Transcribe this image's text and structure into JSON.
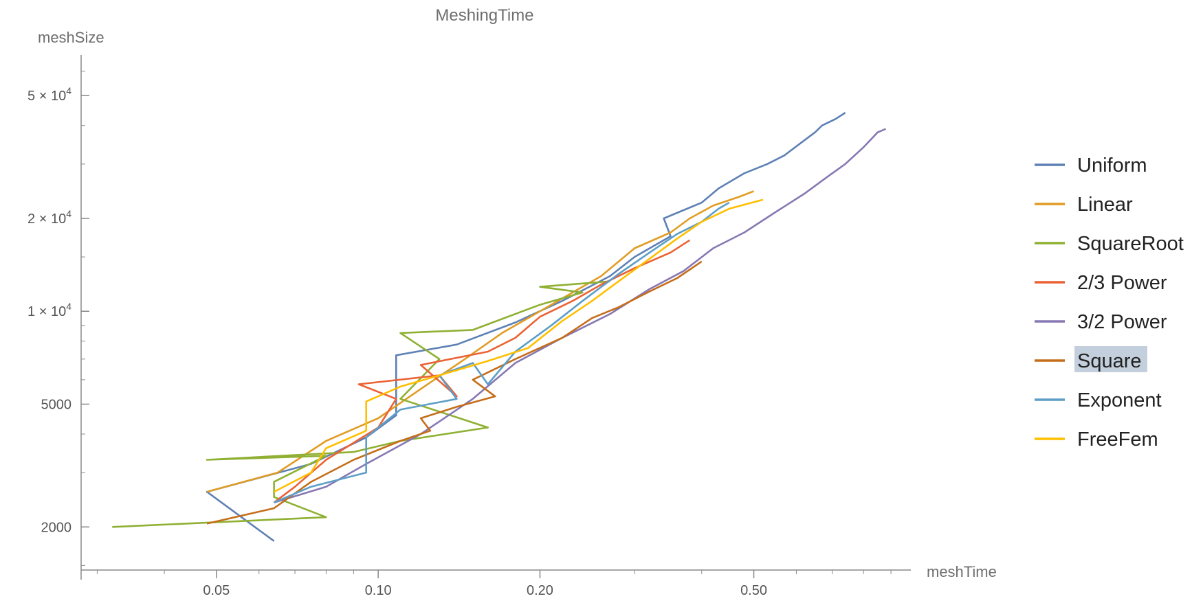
{
  "chart_data": {
    "type": "line",
    "title": "MeshingTime",
    "xlabel": "meshTime",
    "ylabel": "meshSize",
    "xscale": "log",
    "yscale": "log",
    "xlim": [
      0.028,
      0.98
    ],
    "ylim": [
      1450,
      66000
    ],
    "x_ticks": [
      {
        "value": 0.05,
        "label": "0.05"
      },
      {
        "value": 0.1,
        "label": "0.10"
      },
      {
        "value": 0.2,
        "label": "0.20"
      },
      {
        "value": 0.5,
        "label": "0.50"
      }
    ],
    "y_ticks": [
      {
        "value": 2000,
        "label": "2000",
        "base": "2000",
        "exp": ""
      },
      {
        "value": 5000,
        "label": "5000",
        "base": "5000",
        "exp": ""
      },
      {
        "value": 10000,
        "label": "1 × 10^4",
        "base": "1 × 10",
        "exp": "4"
      },
      {
        "value": 20000,
        "label": "2 × 10^4",
        "base": "2 × 10",
        "exp": "4"
      },
      {
        "value": 50000,
        "label": "5 × 10^4",
        "base": "5 × 10",
        "exp": "4"
      }
    ],
    "legend_position": "right",
    "highlighted_legend_entry": "Square",
    "series": [
      {
        "name": "Uniform",
        "color": "#5e81b5",
        "points": [
          [
            0.064,
            1800
          ],
          [
            0.048,
            2600
          ],
          [
            0.075,
            3200
          ],
          [
            0.095,
            3900
          ],
          [
            0.108,
            4600
          ],
          [
            0.108,
            7200
          ],
          [
            0.14,
            7800
          ],
          [
            0.18,
            9200
          ],
          [
            0.22,
            10800
          ],
          [
            0.27,
            13000
          ],
          [
            0.3,
            15000
          ],
          [
            0.35,
            17500
          ],
          [
            0.34,
            20000
          ],
          [
            0.4,
            22500
          ],
          [
            0.43,
            25000
          ],
          [
            0.48,
            28000
          ],
          [
            0.53,
            30000
          ],
          [
            0.57,
            32000
          ],
          [
            0.61,
            35000
          ],
          [
            0.65,
            38000
          ],
          [
            0.67,
            40000
          ],
          [
            0.71,
            42000
          ],
          [
            0.74,
            44000
          ]
        ]
      },
      {
        "name": "Linear",
        "color": "#e19c24",
        "points": [
          [
            0.048,
            2600
          ],
          [
            0.065,
            3000
          ],
          [
            0.08,
            3800
          ],
          [
            0.1,
            4500
          ],
          [
            0.12,
            5600
          ],
          [
            0.145,
            7000
          ],
          [
            0.17,
            8500
          ],
          [
            0.2,
            10000
          ],
          [
            0.23,
            11500
          ],
          [
            0.26,
            13000
          ],
          [
            0.3,
            16000
          ],
          [
            0.35,
            18000
          ],
          [
            0.38,
            20000
          ],
          [
            0.42,
            22000
          ],
          [
            0.47,
            23500
          ],
          [
            0.5,
            24500
          ]
        ]
      },
      {
        "name": "SquareRoot",
        "color": "#8fb032",
        "points": [
          [
            0.032,
            2000
          ],
          [
            0.08,
            2150
          ],
          [
            0.064,
            2500
          ],
          [
            0.064,
            2800
          ],
          [
            0.08,
            3400
          ],
          [
            0.048,
            3300
          ],
          [
            0.09,
            3500
          ],
          [
            0.11,
            3800
          ],
          [
            0.16,
            4200
          ],
          [
            0.11,
            5200
          ],
          [
            0.13,
            7000
          ],
          [
            0.11,
            8500
          ],
          [
            0.15,
            8700
          ],
          [
            0.2,
            10500
          ],
          [
            0.24,
            11500
          ],
          [
            0.2,
            12000
          ],
          [
            0.27,
            12500
          ]
        ]
      },
      {
        "name": "2/3 Power",
        "color": "#eb6235",
        "points": [
          [
            0.064,
            2400
          ],
          [
            0.07,
            2700
          ],
          [
            0.08,
            3300
          ],
          [
            0.1,
            4200
          ],
          [
            0.108,
            5200
          ],
          [
            0.092,
            5800
          ],
          [
            0.13,
            6200
          ],
          [
            0.14,
            5300
          ],
          [
            0.12,
            6700
          ],
          [
            0.16,
            7400
          ],
          [
            0.18,
            8200
          ],
          [
            0.2,
            9600
          ],
          [
            0.23,
            10800
          ],
          [
            0.26,
            12200
          ],
          [
            0.3,
            13800
          ],
          [
            0.35,
            15500
          ],
          [
            0.38,
            17000
          ]
        ]
      },
      {
        "name": "3/2 Power",
        "color": "#8778b3",
        "points": [
          [
            0.064,
            2400
          ],
          [
            0.08,
            2700
          ],
          [
            0.095,
            3200
          ],
          [
            0.12,
            4000
          ],
          [
            0.15,
            5200
          ],
          [
            0.18,
            6800
          ],
          [
            0.22,
            8200
          ],
          [
            0.27,
            9800
          ],
          [
            0.32,
            11800
          ],
          [
            0.37,
            13500
          ],
          [
            0.42,
            16000
          ],
          [
            0.48,
            18000
          ],
          [
            0.55,
            21000
          ],
          [
            0.62,
            24000
          ],
          [
            0.68,
            27000
          ],
          [
            0.74,
            30000
          ],
          [
            0.8,
            34000
          ],
          [
            0.85,
            38000
          ],
          [
            0.88,
            39000
          ]
        ]
      },
      {
        "name": "Square",
        "color": "#c56e1a",
        "points": [
          [
            0.048,
            2050
          ],
          [
            0.064,
            2300
          ],
          [
            0.075,
            2800
          ],
          [
            0.09,
            3300
          ],
          [
            0.11,
            3800
          ],
          [
            0.125,
            4100
          ],
          [
            0.12,
            4500
          ],
          [
            0.14,
            4900
          ],
          [
            0.165,
            5300
          ],
          [
            0.15,
            6000
          ],
          [
            0.18,
            7000
          ],
          [
            0.22,
            8200
          ],
          [
            0.25,
            9500
          ],
          [
            0.28,
            10300
          ],
          [
            0.32,
            11600
          ],
          [
            0.36,
            12800
          ],
          [
            0.4,
            14500
          ]
        ]
      },
      {
        "name": "Exponent",
        "color": "#5d9ec7",
        "points": [
          [
            0.064,
            2400
          ],
          [
            0.075,
            2700
          ],
          [
            0.095,
            3000
          ],
          [
            0.095,
            3900
          ],
          [
            0.11,
            4800
          ],
          [
            0.14,
            5200
          ],
          [
            0.13,
            6200
          ],
          [
            0.15,
            6800
          ],
          [
            0.16,
            5800
          ],
          [
            0.18,
            7400
          ],
          [
            0.21,
            9000
          ],
          [
            0.24,
            10800
          ],
          [
            0.28,
            13200
          ],
          [
            0.32,
            15500
          ],
          [
            0.36,
            17800
          ],
          [
            0.4,
            19500
          ],
          [
            0.43,
            21500
          ],
          [
            0.45,
            22500
          ]
        ]
      },
      {
        "name": "FreeFem",
        "color": "#ffbf00",
        "points": [
          [
            0.064,
            2600
          ],
          [
            0.075,
            3000
          ],
          [
            0.08,
            3600
          ],
          [
            0.095,
            4100
          ],
          [
            0.095,
            5100
          ],
          [
            0.11,
            5700
          ],
          [
            0.13,
            6200
          ],
          [
            0.16,
            6900
          ],
          [
            0.19,
            7600
          ],
          [
            0.22,
            9300
          ],
          [
            0.25,
            10800
          ],
          [
            0.28,
            12500
          ],
          [
            0.32,
            14800
          ],
          [
            0.36,
            17200
          ],
          [
            0.4,
            19500
          ],
          [
            0.45,
            21500
          ],
          [
            0.52,
            23000
          ]
        ]
      }
    ]
  }
}
